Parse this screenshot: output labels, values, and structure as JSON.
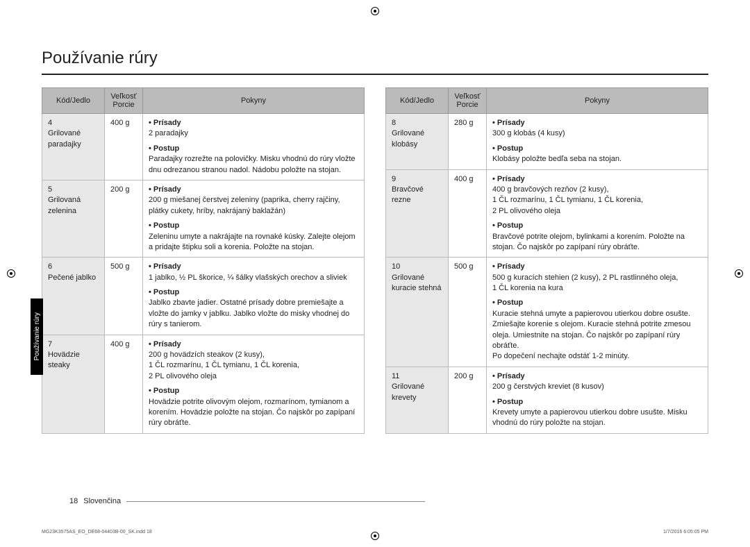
{
  "title": "Používanie rúry",
  "sideTab": "Používanie rúry",
  "headers": {
    "code": "Kód/Jedlo",
    "size": "Veľkosť Porcie",
    "instructions": "Pokyny"
  },
  "labels": {
    "ingredients": "• Prísady",
    "procedure": "• Postup"
  },
  "leftRows": [
    {
      "code": "4",
      "name": "Grilované paradajky",
      "size": "400 g",
      "ingredients": "2 paradajky",
      "procedure": "Paradajky rozrežte na polovičky. Misku vhodnú do rúry vložte dnu odrezanou stranou nadol. Nádobu položte na stojan."
    },
    {
      "code": "5",
      "name": "Grilovaná zelenina",
      "size": "200 g",
      "ingredients": "200 g miešanej čerstvej zeleniny (paprika, cherry rajčiny, plátky cukety, hríby, nakrájaný baklažán)",
      "procedure": "Zeleninu umyte a nakrájajte na rovnaké kúsky. Zalejte olejom a pridajte štipku soli a korenia. Položte na stojan."
    },
    {
      "code": "6",
      "name": "Pečené jablko",
      "size": "500 g",
      "ingredients": "1 jablko, ½ PL škorice, ¼ šálky vlašských orechov a sliviek",
      "procedure": "Jablko zbavte jadier. Ostatné prísady dobre premiešajte a vložte do jamky v jablku. Jablko vložte do misky vhodnej do rúry s tanierom."
    },
    {
      "code": "7",
      "name": "Hovädzie steaky",
      "size": "400 g",
      "ingredients": "200 g hovädzích steakov (2 kusy),\n1 ČL rozmarínu, 1 ČL tymianu, 1 ČL korenia,\n2 PL olivového oleja",
      "procedure": "Hovädzie potrite olivovým olejom, rozmarínom, tymianom a korením. Hovädzie položte na stojan. Čo najskôr po zapípaní rúry obráťte."
    }
  ],
  "rightRows": [
    {
      "code": "8",
      "name": "Grilované klobásy",
      "size": "280 g",
      "ingredients": "300 g klobás (4 kusy)",
      "procedure": "Klobásy položte bedľa seba na stojan."
    },
    {
      "code": "9",
      "name": "Bravčové rezne",
      "size": "400 g",
      "ingredients": "400 g bravčových rezňov (2 kusy),\n1 ČL rozmarínu, 1 ČL tymianu, 1 ČL korenia,\n2 PL olivového oleja",
      "procedure": "Bravčové potrite olejom, bylinkami a korením. Položte na stojan. Čo najskôr po zapípaní rúry obráťte."
    },
    {
      "code": "10",
      "name": "Grilované kuracie stehná",
      "size": "500 g",
      "ingredients": "500 g kuracích stehien (2 kusy), 2 PL rastlinného oleja,\n1 ČL korenia na kura",
      "procedure": "Kuracie stehná umyte a papierovou utierkou dobre osušte. Zmiešajte korenie s olejom. Kuracie stehná potrite zmesou oleja. Umiestnite na stojan. Čo najskôr po zapípaní rúry obráťte.\nPo dopečení nechajte odstáť 1-2 minúty."
    },
    {
      "code": "11",
      "name": "Grilované krevety",
      "size": "200 g",
      "ingredients": "200 g čerstvých kreviet (8 kusov)",
      "procedure": "Krevety umyte a papierovou utierkou dobre usušte. Misku vhodnú do rúry položte na stojan."
    }
  ],
  "footer": {
    "pageNum": "18",
    "lang": "Slovenčina",
    "docRef": "MG23K3575AS_EO_DE68-04403B-00_SK.indd   18",
    "timestamp": "1/7/2016   6:05:05 PM"
  }
}
